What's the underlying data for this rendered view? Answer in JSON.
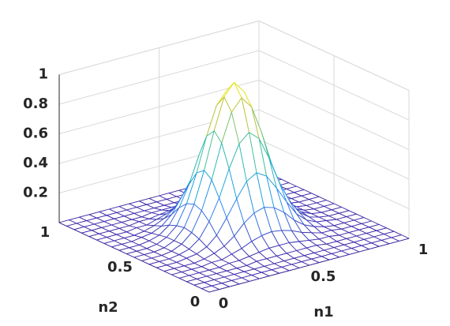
{
  "chart_data": {
    "type": "mesh3d",
    "xlabel": "n1",
    "ylabel": "n2",
    "x": [
      0,
      0.05,
      0.1,
      0.15,
      0.2,
      0.25,
      0.3,
      0.35,
      0.4,
      0.45,
      0.5,
      0.55,
      0.6,
      0.65,
      0.7,
      0.75,
      0.8,
      0.85,
      0.9,
      0.95,
      1
    ],
    "y": [
      0,
      0.05,
      0.1,
      0.15,
      0.2,
      0.25,
      0.3,
      0.35,
      0.4,
      0.45,
      0.5,
      0.55,
      0.6,
      0.65,
      0.7,
      0.75,
      0.8,
      0.85,
      0.9,
      0.95,
      1
    ],
    "z": [
      [
        0,
        0,
        0,
        0,
        0,
        0,
        0,
        0,
        0,
        0,
        0,
        0,
        0,
        0,
        0,
        0,
        0,
        0,
        0,
        0,
        0
      ],
      [
        0,
        0,
        0,
        0,
        0,
        0,
        0,
        0,
        0,
        0,
        0,
        0,
        0,
        0,
        0,
        0,
        0,
        0,
        0,
        0,
        0
      ],
      [
        0,
        0,
        0,
        0,
        0,
        0,
        0,
        0,
        0,
        0,
        0,
        0,
        0,
        0,
        0,
        0,
        0,
        0,
        0,
        0,
        0
      ],
      [
        0,
        0,
        0,
        0,
        0,
        0,
        0,
        0.01,
        0.01,
        0.01,
        0.01,
        0.01,
        0.01,
        0.01,
        0,
        0,
        0,
        0,
        0,
        0,
        0
      ],
      [
        0,
        0,
        0,
        0,
        0,
        0.01,
        0.01,
        0.02,
        0.03,
        0.04,
        0.04,
        0.04,
        0.03,
        0.02,
        0.01,
        0.01,
        0,
        0,
        0,
        0,
        0
      ],
      [
        0,
        0,
        0,
        0,
        0.01,
        0.01,
        0.03,
        0.05,
        0.08,
        0.1,
        0.11,
        0.1,
        0.08,
        0.05,
        0.03,
        0.01,
        0.01,
        0,
        0,
        0,
        0
      ],
      [
        0,
        0,
        0,
        0,
        0.01,
        0.03,
        0.06,
        0.11,
        0.18,
        0.23,
        0.25,
        0.23,
        0.18,
        0.11,
        0.06,
        0.03,
        0.01,
        0,
        0,
        0,
        0
      ],
      [
        0,
        0,
        0,
        0.01,
        0.02,
        0.05,
        0.11,
        0.21,
        0.32,
        0.42,
        0.46,
        0.42,
        0.32,
        0.21,
        0.11,
        0.05,
        0.02,
        0.01,
        0,
        0,
        0
      ],
      [
        0,
        0,
        0,
        0.01,
        0.03,
        0.08,
        0.18,
        0.32,
        0.5,
        0.65,
        0.71,
        0.65,
        0.5,
        0.32,
        0.18,
        0.08,
        0.03,
        0.01,
        0,
        0,
        0
      ],
      [
        0,
        0,
        0,
        0.01,
        0.04,
        0.1,
        0.23,
        0.42,
        0.65,
        0.84,
        0.92,
        0.84,
        0.65,
        0.42,
        0.23,
        0.1,
        0.04,
        0.01,
        0,
        0,
        0
      ],
      [
        0,
        0,
        0,
        0.01,
        0.04,
        0.11,
        0.25,
        0.46,
        0.71,
        0.92,
        1,
        0.92,
        0.71,
        0.46,
        0.25,
        0.11,
        0.04,
        0.01,
        0,
        0,
        0
      ],
      [
        0,
        0,
        0,
        0.01,
        0.04,
        0.1,
        0.23,
        0.42,
        0.65,
        0.84,
        0.92,
        0.84,
        0.65,
        0.42,
        0.23,
        0.1,
        0.04,
        0.01,
        0,
        0,
        0
      ],
      [
        0,
        0,
        0,
        0.01,
        0.03,
        0.08,
        0.18,
        0.32,
        0.5,
        0.65,
        0.71,
        0.65,
        0.5,
        0.32,
        0.18,
        0.08,
        0.03,
        0.01,
        0,
        0,
        0
      ],
      [
        0,
        0,
        0,
        0.01,
        0.02,
        0.05,
        0.11,
        0.21,
        0.32,
        0.42,
        0.46,
        0.42,
        0.32,
        0.21,
        0.11,
        0.05,
        0.02,
        0.01,
        0,
        0,
        0
      ],
      [
        0,
        0,
        0,
        0,
        0.01,
        0.03,
        0.06,
        0.11,
        0.18,
        0.23,
        0.25,
        0.23,
        0.18,
        0.11,
        0.06,
        0.03,
        0.01,
        0,
        0,
        0,
        0
      ],
      [
        0,
        0,
        0,
        0,
        0.01,
        0.01,
        0.03,
        0.05,
        0.08,
        0.1,
        0.11,
        0.1,
        0.08,
        0.05,
        0.03,
        0.01,
        0.01,
        0,
        0,
        0,
        0
      ],
      [
        0,
        0,
        0,
        0,
        0,
        0.01,
        0.01,
        0.02,
        0.03,
        0.04,
        0.04,
        0.04,
        0.03,
        0.02,
        0.01,
        0.01,
        0,
        0,
        0,
        0,
        0
      ],
      [
        0,
        0,
        0,
        0,
        0,
        0,
        0,
        0.01,
        0.01,
        0.01,
        0.01,
        0.01,
        0.01,
        0.01,
        0,
        0,
        0,
        0,
        0,
        0,
        0
      ],
      [
        0,
        0,
        0,
        0,
        0,
        0,
        0,
        0,
        0,
        0,
        0,
        0,
        0,
        0,
        0,
        0,
        0,
        0,
        0,
        0,
        0
      ],
      [
        0,
        0,
        0,
        0,
        0,
        0,
        0,
        0,
        0,
        0,
        0,
        0,
        0,
        0,
        0,
        0,
        0,
        0,
        0,
        0,
        0
      ],
      [
        0,
        0,
        0,
        0,
        0,
        0,
        0,
        0,
        0,
        0,
        0,
        0,
        0,
        0,
        0,
        0,
        0,
        0,
        0,
        0,
        0
      ]
    ],
    "xlim": [
      0,
      1
    ],
    "ylim": [
      0,
      1
    ],
    "zlim": [
      0,
      1
    ],
    "xticks": [
      0,
      0.5,
      1
    ],
    "yticks": [
      0,
      0.5,
      1
    ],
    "zticks": [
      0.2,
      0.4,
      0.6,
      0.8,
      1
    ],
    "grid": true,
    "colormap": [
      "#3e26a8",
      "#2c7ff5",
      "#12b0d0",
      "#4cc38a",
      "#c8c12a",
      "#f9fb0e"
    ]
  }
}
